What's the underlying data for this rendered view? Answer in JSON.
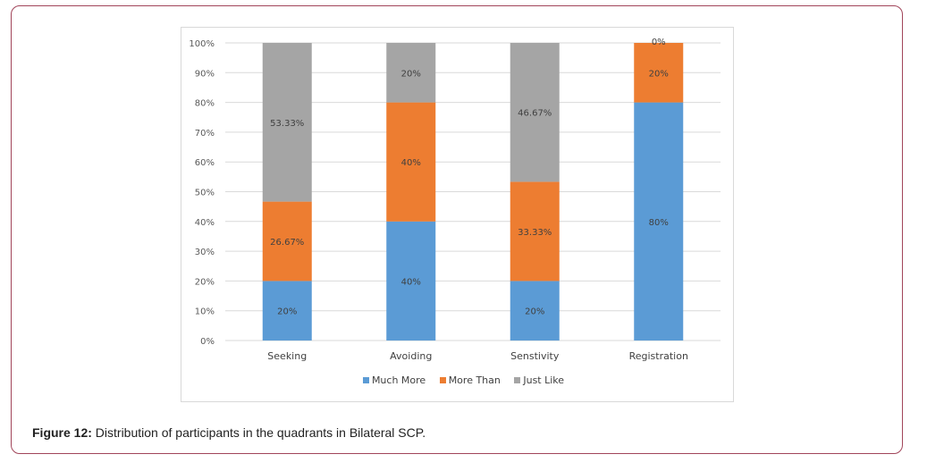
{
  "chart_data": {
    "type": "stacked-bar",
    "title": "",
    "xlabel": "",
    "ylabel": "",
    "ylim": [
      0,
      100
    ],
    "yticks": [
      "0%",
      "10%",
      "20%",
      "30%",
      "40%",
      "50%",
      "60%",
      "70%",
      "80%",
      "90%",
      "100%"
    ],
    "categories": [
      "Seeking",
      "Avoiding",
      "Senstivity",
      "Registration"
    ],
    "series": [
      {
        "name": "Much More",
        "color": "#5b9bd5",
        "values": [
          20,
          40,
          20,
          80
        ],
        "labels": [
          "20%",
          "40%",
          "20%",
          "80%"
        ]
      },
      {
        "name": "More Than",
        "color": "#ed7d31",
        "values": [
          26.67,
          40,
          33.33,
          20
        ],
        "labels": [
          "26.67%",
          "40%",
          "33.33%",
          "20%"
        ]
      },
      {
        "name": "Just Like",
        "color": "#a5a5a5",
        "values": [
          53.33,
          20,
          46.67,
          0
        ],
        "labels": [
          "53.33%",
          "20%",
          "46.67%",
          "0%"
        ]
      }
    ],
    "legend_position": "bottom"
  },
  "caption": {
    "label": "Figure 12:",
    "text": " Distribution of participants in the quadrants in Bilateral SCP."
  }
}
